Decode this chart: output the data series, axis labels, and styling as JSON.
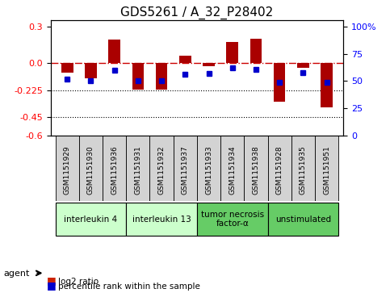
{
  "title": "GDS5261 / A_32_P28402",
  "samples": [
    "GSM1151929",
    "GSM1151930",
    "GSM1151936",
    "GSM1151931",
    "GSM1151932",
    "GSM1151937",
    "GSM1151933",
    "GSM1151934",
    "GSM1151938",
    "GSM1151928",
    "GSM1151935",
    "GSM1151951"
  ],
  "log2_ratio": [
    -0.08,
    -0.13,
    0.19,
    -0.22,
    -0.22,
    0.06,
    -0.03,
    0.17,
    0.2,
    -0.32,
    -0.04,
    -0.37
  ],
  "percentile_rank": [
    52,
    50,
    60,
    50,
    50,
    56,
    57,
    62,
    61,
    49,
    58,
    49
  ],
  "agents": [
    {
      "label": "interleukin 4",
      "start": 0,
      "end": 3,
      "color": "#ccffcc"
    },
    {
      "label": "interleukin 13",
      "start": 3,
      "end": 6,
      "color": "#ccffcc"
    },
    {
      "label": "tumor necrosis\nfactor-α",
      "start": 6,
      "end": 9,
      "color": "#66cc66"
    },
    {
      "label": "unstimulated",
      "start": 9,
      "end": 12,
      "color": "#66cc66"
    }
  ],
  "ylim": [
    -0.6,
    0.35
  ],
  "yticks_left": [
    -0.6,
    -0.45,
    -0.225,
    0.0,
    0.3
  ],
  "yticks_right": [
    0,
    25,
    50,
    75,
    100
  ],
  "hlines": [
    -0.225,
    -0.45
  ],
  "bar_color": "#aa0000",
  "marker_color": "#0000cc",
  "zero_line_color": "#cc0000",
  "legend_bar_color": "#cc2200",
  "legend_marker_color": "#0000cc"
}
